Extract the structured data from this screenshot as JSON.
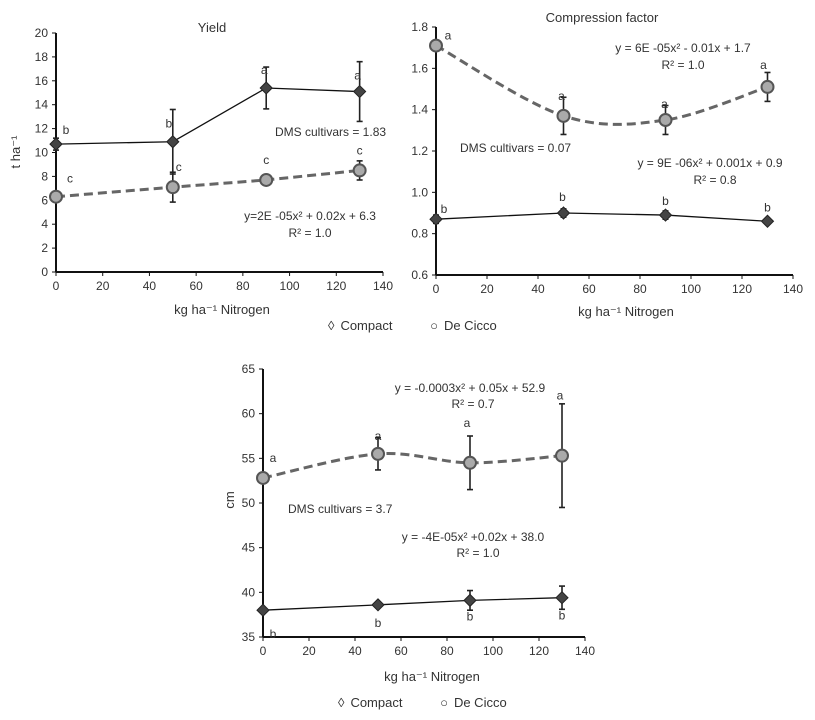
{
  "legend": {
    "compact": "Compact",
    "decicco": "De Cicco",
    "compact_icon": "diamond-icon",
    "decicco_icon": "circle-icon"
  },
  "chart_data": [
    {
      "type": "line",
      "title": "Yield",
      "xlabel": "kg ha⁻¹ Nitrogen",
      "ylabel": "t ha⁻¹",
      "xlim": [
        0,
        140
      ],
      "ylim": [
        0,
        20
      ],
      "xticks": [
        0,
        20,
        40,
        60,
        80,
        100,
        120,
        140
      ],
      "yticks": [
        0,
        2,
        4,
        6,
        8,
        10,
        12,
        14,
        16,
        18,
        20
      ],
      "x": [
        0,
        50,
        90,
        130
      ],
      "series": [
        {
          "name": "Compact",
          "style": "solid",
          "values": [
            10.7,
            10.9,
            15.4,
            15.1
          ],
          "errors": [
            0.5,
            2.7,
            1.75,
            2.5
          ],
          "letters": [
            "b",
            "b",
            "a",
            "a"
          ]
        },
        {
          "name": "De Cicco",
          "style": "dashed",
          "values": [
            6.3,
            7.1,
            7.7,
            8.5
          ],
          "errors": [
            0.3,
            1.25,
            0.3,
            0.8
          ],
          "letters": [
            "c",
            "c",
            "c",
            "c"
          ]
        }
      ],
      "annotations": [
        "DMS cultivars = 1.83",
        "y=2E -05x² + 0.02x + 6.3",
        "R² = 1.0"
      ]
    },
    {
      "type": "line",
      "title": "Compression factor",
      "xlabel": "kg ha⁻¹ Nitrogen",
      "ylabel": "",
      "xlim": [
        0,
        140
      ],
      "ylim": [
        0.6,
        1.8
      ],
      "xticks": [
        0,
        20,
        40,
        60,
        80,
        100,
        120,
        140
      ],
      "yticks": [
        "0.6",
        "0.8",
        "1.0",
        "1.2",
        "1.4",
        "1.6",
        "1.8"
      ],
      "x": [
        0,
        50,
        90,
        130
      ],
      "series": [
        {
          "name": "Compact",
          "style": "solid",
          "values": [
            0.87,
            0.9,
            0.89,
            0.86
          ],
          "errors": [
            0.02,
            0.02,
            0.02,
            0.01
          ],
          "letters": [
            "b",
            "b",
            "b",
            "b"
          ]
        },
        {
          "name": "De Cicco",
          "style": "dashed",
          "values": [
            1.71,
            1.37,
            1.35,
            1.51
          ],
          "errors": [
            0.02,
            0.09,
            0.07,
            0.07
          ],
          "letters": [
            "a",
            "a",
            "a",
            "a"
          ]
        }
      ],
      "annotations": [
        "y = 6E -05x² - 0.01x + 1.7",
        "R² = 1.0",
        "DMS cultivars = 0.07",
        "y = 9E -06x² + 0.001x + 0.9",
        "R² = 0.8"
      ]
    },
    {
      "type": "line",
      "title": "",
      "xlabel": "kg ha⁻¹ Nitrogen",
      "ylabel": "cm",
      "xlim": [
        0,
        140
      ],
      "ylim": [
        35,
        65
      ],
      "xticks": [
        0,
        20,
        40,
        60,
        80,
        100,
        120,
        140
      ],
      "yticks": [
        35,
        40,
        45,
        50,
        55,
        60,
        65
      ],
      "x": [
        0,
        50,
        90,
        130
      ],
      "series": [
        {
          "name": "Compact",
          "style": "solid",
          "values": [
            38.0,
            38.6,
            39.1,
            39.4
          ],
          "errors": [
            0.2,
            0.3,
            1.1,
            1.3
          ],
          "letters": [
            "b",
            "b",
            "b",
            "b"
          ]
        },
        {
          "name": "De Cicco",
          "style": "dashed",
          "values": [
            52.8,
            55.5,
            54.5,
            55.3
          ],
          "errors": [
            0.3,
            1.8,
            3.0,
            5.8
          ],
          "letters": [
            "a",
            "a",
            "a",
            "a"
          ]
        }
      ],
      "annotations": [
        "y = -0.0003x² + 0.05x + 52.9",
        "R² = 0.7",
        "DMS cultivars = 3.7",
        "y = -4E-05x² +0.02x + 38.0",
        "R² = 1.0"
      ]
    }
  ]
}
